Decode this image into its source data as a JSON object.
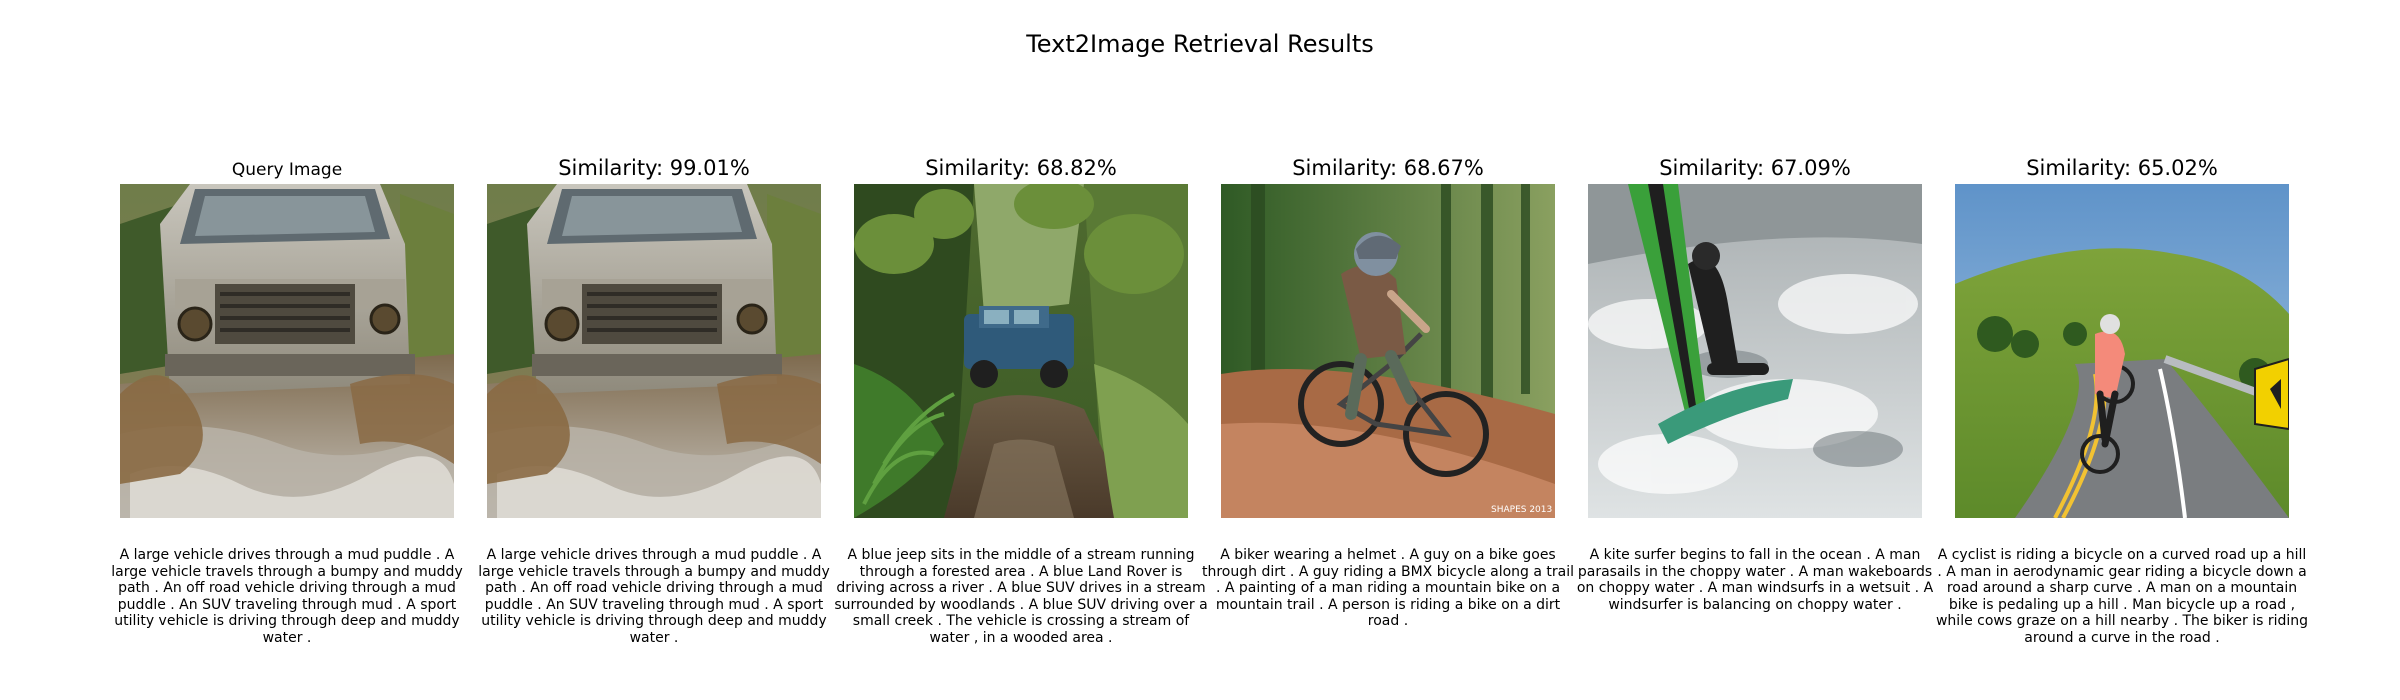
{
  "figure": {
    "title": "Text2Image Retrieval Results"
  },
  "query": {
    "title": "Query Image",
    "caption": "A large vehicle drives through a mud puddle . A large vehicle travels through a bumpy and muddy path . An off road vehicle driving through a mud puddle . An SUV traveling through mud . A sport utility vehicle is driving through deep and muddy water ."
  },
  "results": [
    {
      "title": "Similarity: 99.01%",
      "similarity_percent": 99.01,
      "caption": "A large vehicle drives through a mud puddle . A large vehicle travels through a bumpy and muddy path . An off road vehicle driving through a mud puddle . An SUV traveling through mud . A sport utility vehicle is driving through deep and muddy water ."
    },
    {
      "title": "Similarity: 68.82%",
      "similarity_percent": 68.82,
      "caption": "A blue jeep sits in the middle of a stream running through a forested area . A blue Land Rover is driving across a river . A blue SUV drives in a stream surrounded by woodlands . A blue SUV driving over a small creek . The vehicle is crossing a stream of water , in a wooded area ."
    },
    {
      "title": "Similarity: 68.67%",
      "similarity_percent": 68.67,
      "caption": "A biker wearing a helmet . A guy on a bike goes through dirt . A guy riding a BMX bicycle along a trail . A painting of a man riding a mountain bike on a mountain trail . A person is riding a bike on a dirt road ."
    },
    {
      "title": "Similarity: 67.09%",
      "similarity_percent": 67.09,
      "caption": "A kite surfer begins to fall in the ocean . A man parasails in the choppy water . A man wakeboards on choppy water . A man windsurfs in a wetsuit . A windsurfer is balancing on choppy water ."
    },
    {
      "title": "Similarity: 65.02%",
      "similarity_percent": 65.02,
      "caption": "A cyclist is riding a bicycle on a curved road up a hill . A man in aerodynamic gear riding a bicycle down a road around a sharp curve . A man on a mountain bike is pedaling up a hill . Man bicycle up a road , while cows graze on a hill nearby . The biker is riding around a curve in the road ."
    }
  ],
  "image_watermark_text": "SHAPES 2013"
}
